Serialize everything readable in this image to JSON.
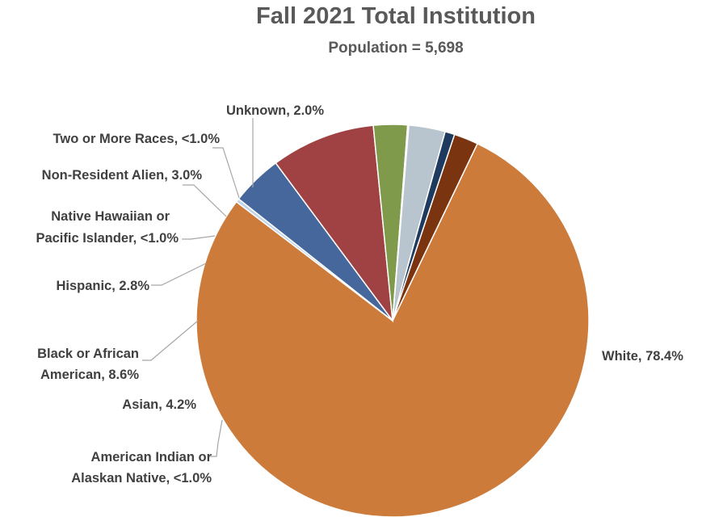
{
  "chart_data": {
    "type": "pie",
    "title": "Fall 2021 Total Institution",
    "subtitle": "Population = 5,698",
    "slices": [
      {
        "label": "White",
        "text": "White, 78.4%",
        "value": 78.4,
        "color": "#CC7B3A"
      },
      {
        "label": "American Indian or Alaskan Native",
        "text": "American Indian or Alaskan Native, <1.0%",
        "value": 0.3,
        "color": "#C0D4EA"
      },
      {
        "label": "Asian",
        "text": "Asian, 4.2%",
        "value": 4.2,
        "color": "#45679B"
      },
      {
        "label": "Black or African American",
        "text": "Black or African American, 8.6%",
        "value": 8.6,
        "color": "#A04243"
      },
      {
        "label": "Hispanic",
        "text": "Hispanic, 2.8%",
        "value": 2.8,
        "color": "#7E9A4A"
      },
      {
        "label": "Native Hawaiian or Pacific Islander",
        "text": "Native Hawaiian or Pacific Islander, <1.0%",
        "value": 0.1,
        "color": "#6A5088"
      },
      {
        "label": "Non-Resident Alien",
        "text": "Non-Resident Alien, 3.0%",
        "value": 3.0,
        "color": "#B8C5CE"
      },
      {
        "label": "Two or More Races",
        "text": "Two or More Races, <1.0%",
        "value": 0.8,
        "color": "#1F3A5F"
      },
      {
        "label": "Unknown",
        "text": "Unknown, 2.0%",
        "value": 2.0,
        "color": "#7B3410"
      }
    ]
  }
}
